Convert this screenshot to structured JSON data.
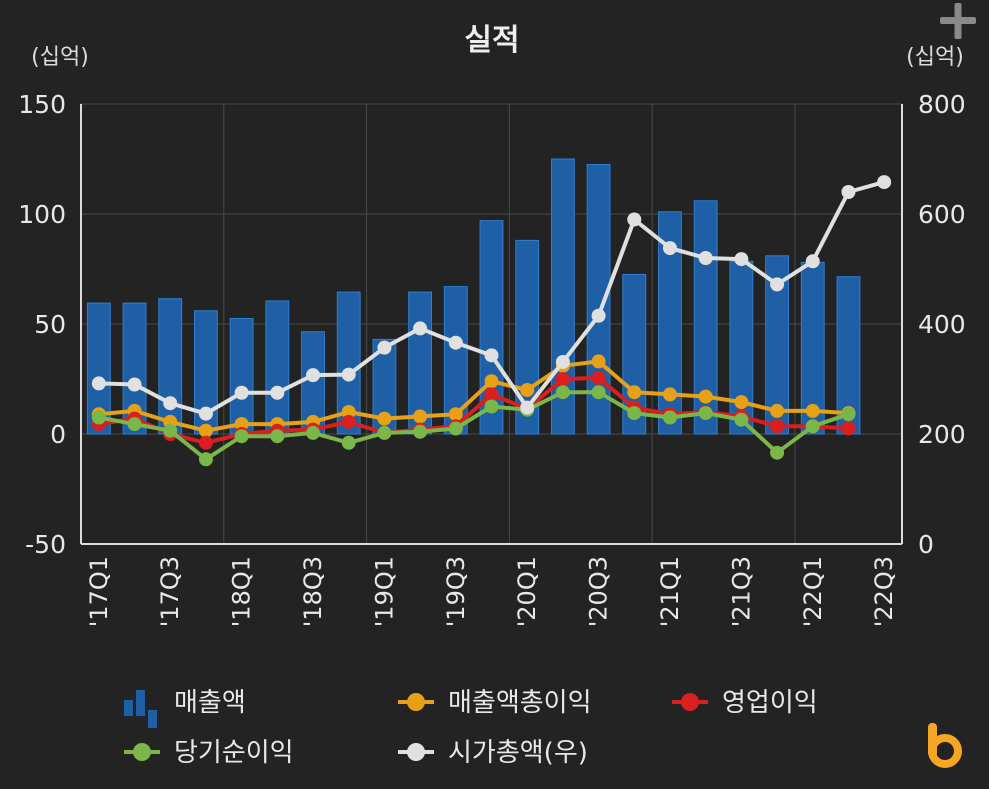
{
  "chart_data": {
    "type": "bar",
    "title": "실적",
    "y_left_unit": "(십억)",
    "y_right_unit": "(십억)",
    "ylim_left": [
      -50,
      150
    ],
    "ylim_right": [
      0,
      800
    ],
    "y_left_ticks": [
      150,
      100,
      50,
      0,
      -50
    ],
    "y_right_ticks": [
      800,
      600,
      400,
      200,
      0
    ],
    "grid": true,
    "legend_position": "bottom",
    "categories": [
      "'17Q1",
      "'17Q2",
      "'17Q3",
      "'17Q4",
      "'18Q1",
      "'18Q2",
      "'18Q3",
      "'18Q4",
      "'19Q1",
      "'19Q2",
      "'19Q3",
      "'19Q4",
      "'20Q1",
      "'20Q2",
      "'20Q3",
      "'20Q4",
      "'21Q1",
      "'21Q2",
      "'21Q3",
      "'21Q4",
      "'22Q1",
      "'22Q2",
      "'22Q3"
    ],
    "x_tick_labels": [
      "'17Q1",
      "'17Q3",
      "'18Q1",
      "'18Q3",
      "'19Q1",
      "'19Q3",
      "'20Q1",
      "'20Q3",
      "'21Q1",
      "'21Q3",
      "'22Q1",
      "'22Q3"
    ],
    "series": [
      {
        "name": "매출액",
        "kind": "bar",
        "axis": "left",
        "color": "#1f5fa6",
        "values": [
          59.5,
          59.5,
          61.5,
          56,
          52.5,
          60.5,
          46.5,
          64.5,
          43,
          64.5,
          67,
          97,
          88,
          125,
          122.5,
          72.5,
          101,
          106,
          78.5,
          81,
          78,
          71.5,
          null
        ]
      },
      {
        "name": "매출액총이익",
        "kind": "line",
        "axis": "left",
        "color": "#e6a117",
        "values": [
          9,
          10.5,
          5.5,
          1.5,
          4.5,
          4.5,
          5.5,
          10,
          7,
          8,
          9,
          24,
          20,
          31,
          33,
          19,
          18,
          17,
          14.5,
          10.5,
          10.5,
          9.5,
          null
        ]
      },
      {
        "name": "영업이익",
        "kind": "line",
        "axis": "left",
        "color": "#d91f1f",
        "values": [
          4.5,
          7,
          0,
          -4,
          0,
          1.5,
          2,
          5.5,
          0.5,
          2,
          3.5,
          18,
          11.5,
          25,
          25.5,
          12,
          9,
          10,
          8,
          3.5,
          3.5,
          2.5,
          null
        ]
      },
      {
        "name": "당기순이익",
        "kind": "line",
        "axis": "left",
        "color": "#7ab648",
        "values": [
          7.5,
          4.5,
          1.5,
          -11.5,
          -1,
          -1,
          0.5,
          -4,
          0.5,
          1,
          2.5,
          12.5,
          11,
          19,
          19,
          9.5,
          7.5,
          9.5,
          6.5,
          -8.5,
          3.5,
          9,
          null
        ]
      },
      {
        "name": "시가총액(우)",
        "kind": "line",
        "axis": "right",
        "color": "#e0e0e0",
        "values": [
          292,
          290,
          256,
          237,
          275,
          275,
          307,
          308,
          357,
          392,
          366,
          343,
          248,
          331,
          415,
          590,
          538,
          520,
          518,
          472,
          514,
          640,
          658
        ]
      }
    ]
  },
  "icons": {
    "corner_action": "plus-icon",
    "logo": "brand-b-logo"
  },
  "colors": {
    "background": "#232323",
    "logo": "#f5a623"
  }
}
